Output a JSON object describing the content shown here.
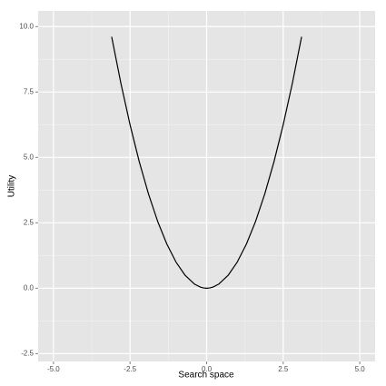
{
  "chart_data": {
    "type": "line",
    "x_label": "Search space",
    "y_label": "Utility",
    "x": [
      -3.1,
      -2.8,
      -2.5,
      -2.2,
      -1.9,
      -1.6,
      -1.3,
      -1.0,
      -0.7,
      -0.4,
      -0.2,
      -0.1,
      0,
      0.1,
      0.2,
      0.4,
      0.7,
      1.0,
      1.3,
      1.6,
      1.9,
      2.2,
      2.5,
      2.8,
      3.1
    ],
    "series": [
      {
        "color": "#000000",
        "values": [
          9.61,
          7.84,
          6.25,
          4.84,
          3.61,
          2.56,
          1.69,
          1.0,
          0.49,
          0.16,
          0.04,
          0.01,
          0,
          0.01,
          0.04,
          0.16,
          0.49,
          1.0,
          1.69,
          2.56,
          3.61,
          4.84,
          6.25,
          7.84,
          9.61
        ]
      }
    ],
    "xlim": [
      -5.5,
      5.5
    ],
    "ylim": [
      -2.8,
      10.6
    ],
    "xticks": [
      {
        "value": -5,
        "label": "-5.0"
      },
      {
        "value": -2.5,
        "label": "-2.5"
      },
      {
        "value": 0,
        "label": "0.0"
      },
      {
        "value": 2.5,
        "label": "2.5"
      },
      {
        "value": 5,
        "label": "5.0"
      }
    ],
    "yticks": [
      {
        "value": -2.5,
        "label": "-2.5"
      },
      {
        "value": 0,
        "label": "0.0"
      },
      {
        "value": 2.5,
        "label": "2.5"
      },
      {
        "value": 5,
        "label": "5.0"
      },
      {
        "value": 7.5,
        "label": "7.5"
      },
      {
        "value": 10,
        "label": "10.0"
      }
    ],
    "grid": true,
    "minor_grid": true,
    "panel_color": "#e5e5e5"
  }
}
